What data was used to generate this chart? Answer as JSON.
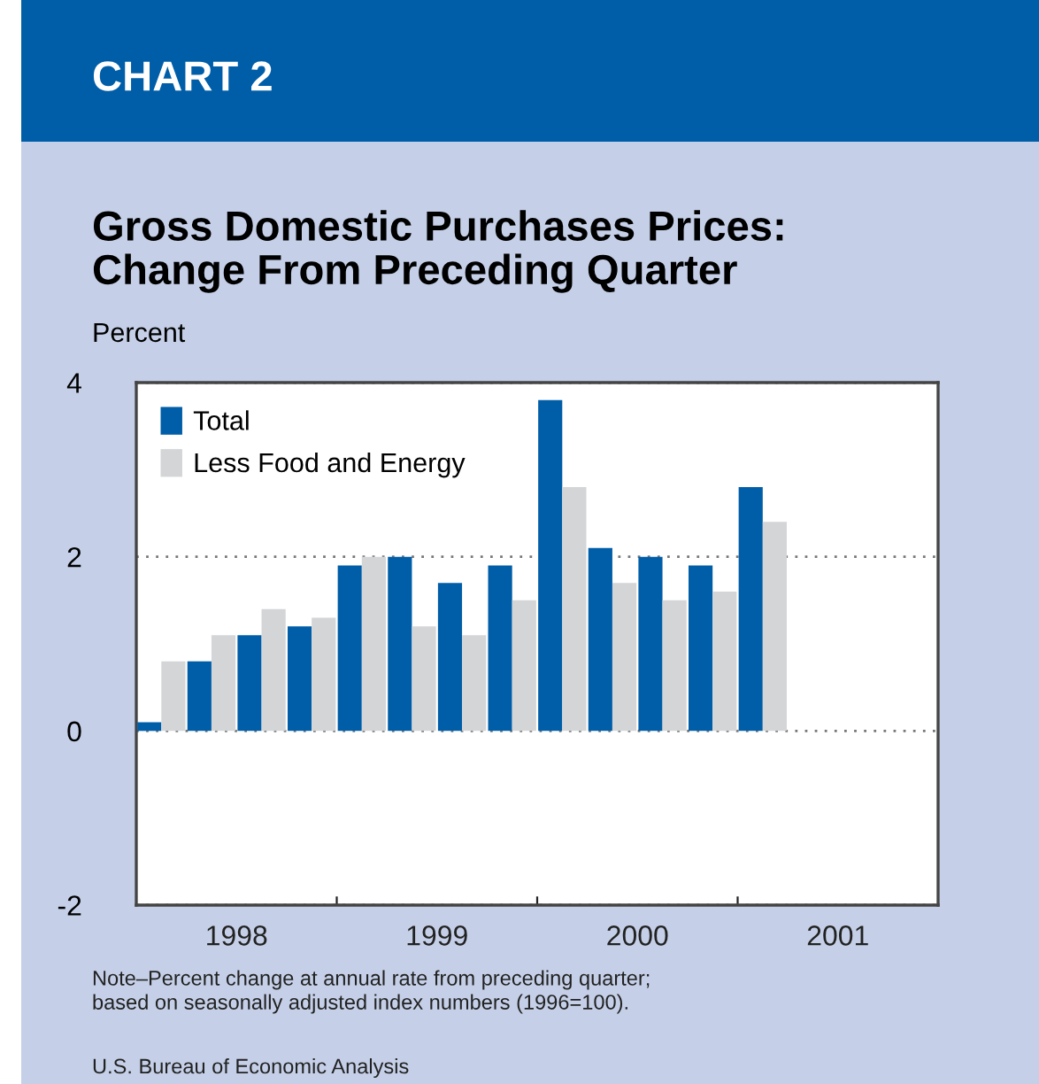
{
  "chart_data": {
    "type": "bar",
    "title": "Gross Domestic Purchases Prices:\nChange From Preceding Quarter",
    "ylabel": "Percent",
    "x": [
      1998.125,
      1998.375,
      1998.625,
      1998.875,
      1999.125,
      1999.375,
      1999.625,
      1999.875,
      2000.125,
      2000.375,
      2000.625,
      2000.875,
      2001.125
    ],
    "series": [
      {
        "name": "Total",
        "color": "#005ea8",
        "values": [
          0.1,
          0.8,
          1.1,
          1.2,
          1.9,
          2.0,
          1.7,
          1.9,
          3.8,
          2.1,
          2.0,
          1.9,
          2.8
        ]
      },
      {
        "name": "Less Food and Energy",
        "color": "#d4d5d7",
        "values": [
          0.8,
          1.1,
          1.4,
          1.3,
          2.0,
          1.2,
          1.1,
          1.5,
          2.8,
          1.7,
          1.5,
          1.6,
          2.4
        ]
      }
    ],
    "xlim": [
      1998,
      2002
    ],
    "xticks": [
      {
        "value": 1998.5,
        "label": "1998"
      },
      {
        "value": 1999,
        "label": null
      },
      {
        "value": 1999.5,
        "label": "1999"
      },
      {
        "value": 2000,
        "label": null
      },
      {
        "value": 2000.5,
        "label": "2000"
      },
      {
        "value": 2001,
        "label": null
      },
      {
        "value": 2001.5,
        "label": "2001"
      }
    ],
    "ylim": [
      -2,
      4
    ],
    "yticks": [
      -2,
      0,
      2,
      4
    ],
    "grid": "y",
    "legend": "top left",
    "annotations": [
      "CHART 2",
      "Note–Percent change at annual rate from preceding quarter;\nbased on seasonally adjusted index numbers (1996=100).",
      "U.S. Bureau of Economic Analysis"
    ]
  }
}
